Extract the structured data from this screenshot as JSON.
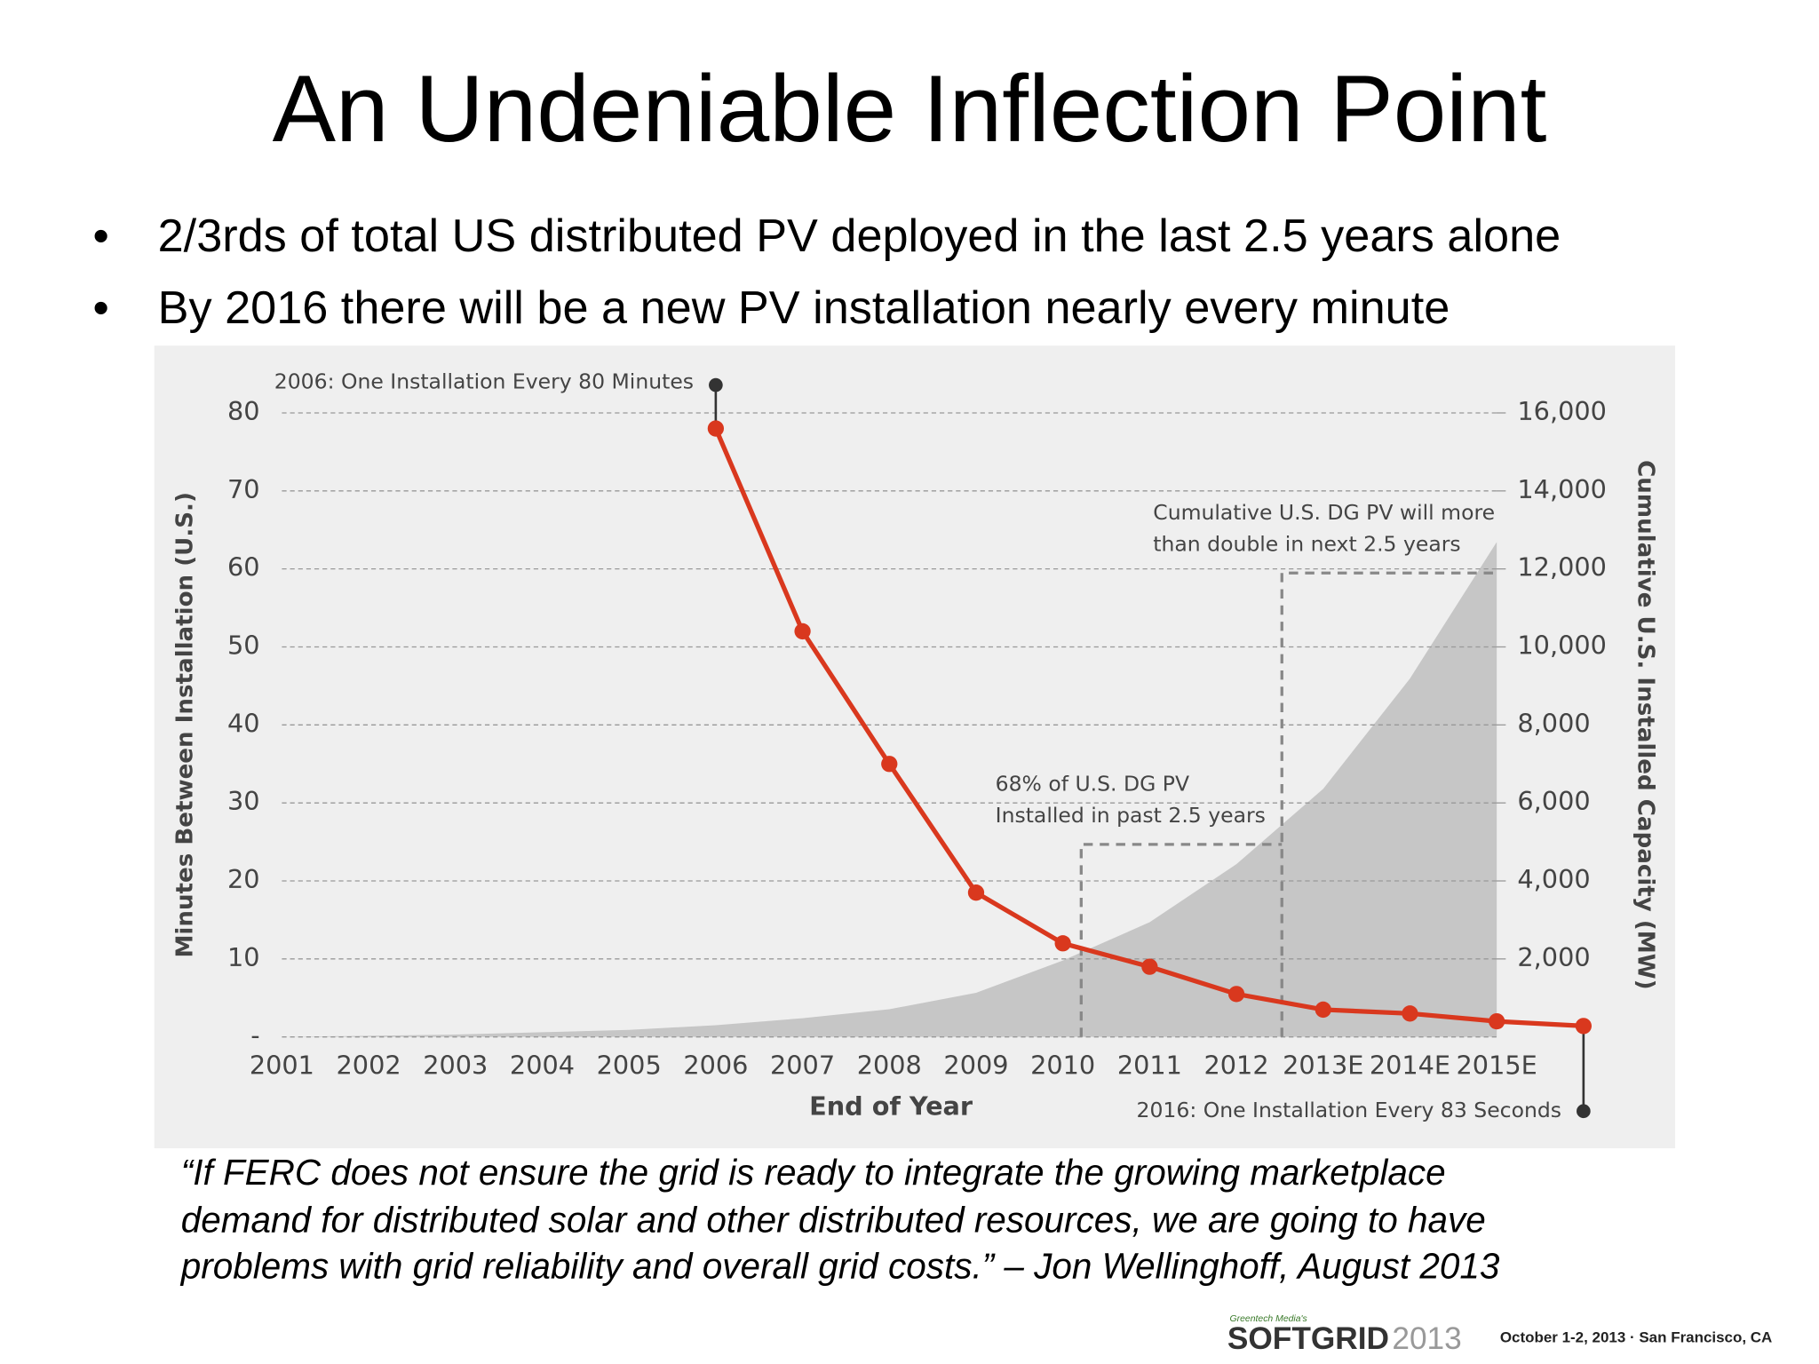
{
  "slide": {
    "title": "An Undeniable Inflection Point",
    "bullets": [
      "2/3rds of total US distributed PV deployed in the last 2.5 years alone",
      "By 2016 there will be a new PV installation nearly every minute"
    ],
    "quote": [
      "“If FERC does not ensure the grid is ready to integrate the growing marketplace",
      "demand for distributed solar and other distributed resources, we are going to have",
      "problems with grid reliability and overall grid costs.” – Jon Wellinghoff, August 2013"
    ],
    "footer": {
      "publisher": "Greentech Media's",
      "brand": "SOFTGRID",
      "year": "2013",
      "event": "October 1-2, 2013 · San Francisco, CA"
    }
  },
  "chart_data": {
    "type": "line",
    "xlabel": "End of Year",
    "ylabel": "Minutes Between Installation (U.S.)",
    "y2label": "Cumulative U.S. Installed Capacity (MW)",
    "categories": [
      "2001",
      "2002",
      "2003",
      "2004",
      "2005",
      "2006",
      "2007",
      "2008",
      "2009",
      "2010",
      "2011",
      "2012",
      "2013E",
      "2014E",
      "2015E",
      null
    ],
    "series": [
      {
        "name": "Minutes Between Installation",
        "type": "line",
        "color": "#d9381e",
        "values": [
          null,
          null,
          null,
          null,
          null,
          78,
          52,
          35,
          18.5,
          12,
          9,
          5.5,
          3.5,
          3,
          2,
          1.4
        ]
      },
      {
        "name": "Cumulative U.S. Installed Capacity",
        "type": "area",
        "axis": "y2",
        "color": "#c6c6c6",
        "values": [
          0,
          30,
          60,
          120,
          180,
          300,
          480,
          710,
          1130,
          1960,
          2940,
          4430,
          6360,
          9190,
          12690,
          null
        ]
      }
    ],
    "ylim": [
      0,
      80
    ],
    "yticks": [
      {
        "value": 0,
        "label": "-"
      },
      10,
      20,
      30,
      40,
      50,
      60,
      70,
      80
    ],
    "y2lim": [
      0,
      16000
    ],
    "y2ticks": [
      {
        "value": 2000,
        "label": "2,000"
      },
      {
        "value": 4000,
        "label": "4,000"
      },
      {
        "value": 6000,
        "label": "6,000"
      },
      {
        "value": 8000,
        "label": "8,000"
      },
      {
        "value": 10000,
        "label": "10,000"
      },
      {
        "value": 12000,
        "label": "12,000"
      },
      {
        "value": 14000,
        "label": "14,000"
      },
      {
        "value": 16000,
        "label": "16,000"
      }
    ],
    "grid": true,
    "annotations": [
      "2006: One Installation Every 80 Minutes",
      "2016: One Installation Every 83 Seconds",
      [
        "Cumulative U.S. DG PV will more",
        "than double in next 2.5 years"
      ],
      [
        "68% of U.S. DG PV",
        "Installed in past 2.5 years"
      ]
    ]
  }
}
